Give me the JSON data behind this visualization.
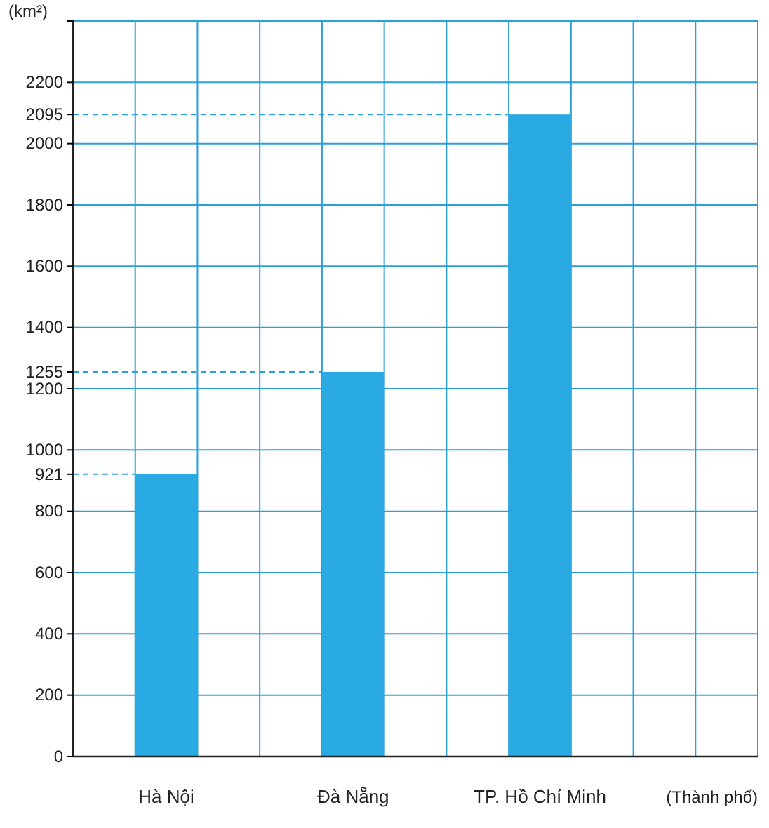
{
  "chart_data": {
    "type": "bar",
    "xlabel": "(Thành phố)",
    "ylabel": "(km²)",
    "categories": [
      "Hà Nội",
      "Đà Nẵng",
      "TP. Hồ Chí Minh"
    ],
    "values": [
      921,
      1255,
      2095
    ],
    "color": "#2aaae2",
    "ylim": [
      0,
      2400
    ],
    "yticks": [
      0,
      200,
      400,
      600,
      800,
      921,
      1000,
      1200,
      1255,
      1400,
      1600,
      1800,
      2000,
      2095,
      2200,
      {
        "value": 2400,
        "label": null
      }
    ],
    "grid": true,
    "ref_lines": [
      {
        "axis": "y",
        "value": 921,
        "line_style": "dashed",
        "color": "#2a9fd8"
      },
      {
        "axis": "y",
        "value": 1255,
        "line_style": "dashed",
        "color": "#2a9fd8"
      },
      {
        "axis": "y",
        "value": 2095,
        "line_style": "dashed",
        "color": "#2a9fd8"
      }
    ]
  }
}
